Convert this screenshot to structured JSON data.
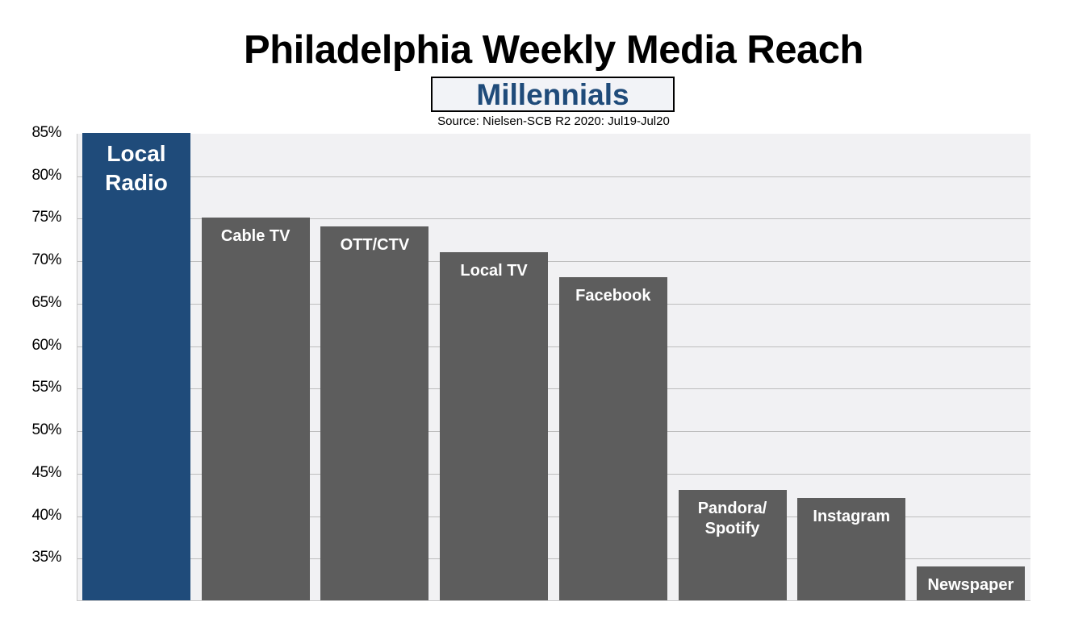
{
  "header": {
    "title": "Philadelphia Weekly Media Reach",
    "subtitle": "Millennials",
    "source": "Source: Nielsen-SCB R2 2020: Jul19-Jul20"
  },
  "colors": {
    "highlight_bar": "#1f4b7a",
    "default_bar": "#5d5d5d",
    "plot_background": "#f1f1f3",
    "gridline": "#bdbdbd",
    "subtitle_text": "#1f4b7a"
  },
  "chart_data": {
    "type": "bar",
    "title": "Philadelphia Weekly Media Reach",
    "subtitle": "Millennials",
    "source": "Source: Nielsen-SCB R2 2020: Jul19-Jul20",
    "categories": [
      "Local Radio",
      "Cable TV",
      "OTT/CTV",
      "Local TV",
      "Facebook",
      "Pandora/Spotify",
      "Instagram",
      "Newspaper"
    ],
    "values": [
      85,
      75,
      74,
      71,
      68,
      43,
      42,
      34
    ],
    "bar_labels": [
      [
        "Local",
        "Radio"
      ],
      [
        "Cable TV"
      ],
      [
        "OTT/CTV"
      ],
      [
        "Local TV"
      ],
      [
        "Facebook"
      ],
      [
        "Pandora/",
        "Spotify"
      ],
      [
        "Instagram"
      ],
      [
        "Newspaper"
      ]
    ],
    "highlight_index": 0,
    "xlabel": "",
    "ylabel": "",
    "ylim": [
      30,
      85
    ],
    "yticks": [
      "85%",
      "80%",
      "75%",
      "70%",
      "65%",
      "60%",
      "55%",
      "50%",
      "45%",
      "40%",
      "35%"
    ],
    "ytick_values": [
      85,
      80,
      75,
      70,
      65,
      60,
      55,
      50,
      45,
      40,
      35
    ],
    "grid": true,
    "legend": "none",
    "units": "%"
  }
}
